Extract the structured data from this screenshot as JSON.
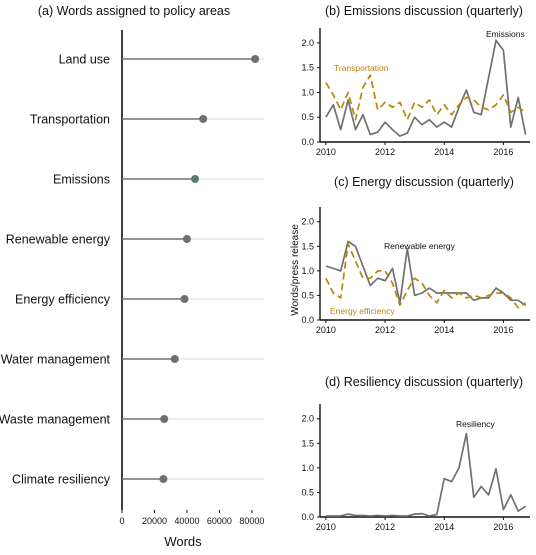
{
  "chart_data": [
    {
      "panel": "a",
      "type": "lollipop",
      "title": "(a) Words assigned to policy areas",
      "xlabel": "Words",
      "xlim": [
        0,
        85000
      ],
      "xticks": [
        "0",
        "20000",
        "40000",
        "60000",
        "80000"
      ],
      "xtick_values": [
        0,
        20000,
        40000,
        60000,
        80000
      ],
      "categories": [
        "Land use",
        "Transportation",
        "Emissions",
        "Renewable energy",
        "Energy efficiency",
        "Water management",
        "Waste management",
        "Climate resiliency"
      ],
      "values": [
        82000,
        50000,
        45000,
        40000,
        38500,
        32500,
        26000,
        25500
      ],
      "highlight": "Emissions",
      "colors": {
        "default": "#707070",
        "highlight": "#5b7a6e",
        "stem": "#707070",
        "guide": "#d9d9d9"
      }
    },
    {
      "panel": "b",
      "type": "line",
      "title": "(b) Emissions discussion (quarterly)",
      "xlim": [
        2009.8,
        2016.9
      ],
      "ylim": [
        0,
        2.3
      ],
      "xticks": [
        2010,
        2012,
        2014,
        2016
      ],
      "yticks": [
        "0.0",
        "0.5",
        "1.0",
        "1.5",
        "2.0"
      ],
      "ytick_values": [
        0,
        0.5,
        1.0,
        1.5,
        2.0
      ],
      "series": [
        {
          "name": "Emissions",
          "style": "solid",
          "color": "#707070",
          "x": [
            2010,
            2010.25,
            2010.5,
            2010.75,
            2011,
            2011.25,
            2011.5,
            2011.75,
            2012,
            2012.25,
            2012.5,
            2012.75,
            2013,
            2013.25,
            2013.5,
            2013.75,
            2014,
            2014.25,
            2014.5,
            2014.75,
            2015,
            2015.25,
            2015.5,
            2015.75,
            2016,
            2016.25,
            2016.5,
            2016.75
          ],
          "y": [
            0.5,
            0.75,
            0.25,
            0.85,
            0.25,
            0.55,
            0.15,
            0.2,
            0.4,
            0.25,
            0.12,
            0.18,
            0.5,
            0.35,
            0.45,
            0.3,
            0.4,
            0.3,
            0.7,
            1.05,
            0.6,
            0.55,
            1.3,
            2.05,
            1.85,
            0.3,
            0.9,
            0.15
          ]
        },
        {
          "name": "Transportation",
          "style": "dashed",
          "color": "#b8860b",
          "x": [
            2010,
            2010.25,
            2010.5,
            2010.75,
            2011,
            2011.25,
            2011.5,
            2011.75,
            2012,
            2012.25,
            2012.5,
            2012.75,
            2013,
            2013.25,
            2013.5,
            2013.75,
            2014,
            2014.25,
            2014.5,
            2014.75,
            2015,
            2015.25,
            2015.5,
            2015.75,
            2016,
            2016.25,
            2016.5,
            2016.75
          ],
          "y": [
            1.2,
            0.95,
            0.65,
            1.0,
            0.45,
            1.1,
            1.35,
            0.65,
            0.8,
            0.7,
            0.8,
            0.45,
            0.8,
            0.7,
            0.85,
            0.55,
            0.75,
            0.55,
            0.75,
            0.9,
            0.85,
            0.7,
            0.65,
            0.75,
            0.95,
            0.6,
            0.7,
            0.6
          ]
        }
      ],
      "labels": [
        {
          "text": "Emissions",
          "color": "#111111"
        },
        {
          "text": "Transportation",
          "color": "#b8860b"
        }
      ]
    },
    {
      "panel": "c",
      "type": "line",
      "title": "(c) Energy discussion (quarterly)",
      "ylabel": "Words/press release",
      "xlim": [
        2009.8,
        2016.9
      ],
      "ylim": [
        0,
        2.3
      ],
      "xticks": [
        2010,
        2012,
        2014,
        2016
      ],
      "yticks": [
        "0.0",
        "0.5",
        "1.0",
        "1.5",
        "2.0"
      ],
      "ytick_values": [
        0,
        0.5,
        1.0,
        1.5,
        2.0
      ],
      "series": [
        {
          "name": "Renewable energy",
          "style": "solid",
          "color": "#707070",
          "x": [
            2010,
            2010.25,
            2010.5,
            2010.75,
            2011,
            2011.25,
            2011.5,
            2011.75,
            2012,
            2012.25,
            2012.5,
            2012.75,
            2013,
            2013.25,
            2013.5,
            2013.75,
            2014,
            2014.25,
            2014.5,
            2014.75,
            2015,
            2015.25,
            2015.5,
            2015.75,
            2016,
            2016.25,
            2016.5,
            2016.75
          ],
          "y": [
            1.1,
            1.05,
            1.0,
            1.6,
            1.5,
            1.1,
            0.7,
            0.85,
            0.8,
            1.05,
            0.35,
            1.45,
            0.5,
            0.55,
            0.65,
            0.55,
            0.55,
            0.55,
            0.55,
            0.55,
            0.4,
            0.45,
            0.45,
            0.65,
            0.55,
            0.4,
            0.4,
            0.3
          ]
        },
        {
          "name": "Energy efficiency",
          "style": "dashed",
          "color": "#b8860b",
          "x": [
            2010,
            2010.25,
            2010.5,
            2010.75,
            2011,
            2011.25,
            2011.5,
            2011.75,
            2012,
            2012.25,
            2012.5,
            2012.75,
            2013,
            2013.25,
            2013.5,
            2013.75,
            2014,
            2014.25,
            2014.5,
            2014.75,
            2015,
            2015.25,
            2015.5,
            2015.75,
            2016,
            2016.25,
            2016.5,
            2016.75
          ],
          "y": [
            0.85,
            0.55,
            0.45,
            1.55,
            1.2,
            0.85,
            0.85,
            1.0,
            1.0,
            0.75,
            0.3,
            0.6,
            0.85,
            0.75,
            0.5,
            0.35,
            0.6,
            0.45,
            0.55,
            0.45,
            0.5,
            0.45,
            0.5,
            0.55,
            0.55,
            0.45,
            0.25,
            0.35
          ]
        }
      ],
      "labels": [
        {
          "text": "Renewable energy",
          "color": "#111111"
        },
        {
          "text": "Energy efficiency",
          "color": "#b8860b"
        }
      ]
    },
    {
      "panel": "d",
      "type": "line",
      "title": "(d) Resiliency discussion (quarterly)",
      "xlim": [
        2009.8,
        2016.9
      ],
      "ylim": [
        0,
        2.3
      ],
      "xticks": [
        2010,
        2012,
        2014,
        2016
      ],
      "yticks": [
        "0.0",
        "0.5",
        "1.0",
        "1.5",
        "2.0"
      ],
      "ytick_values": [
        0,
        0.5,
        1.0,
        1.5,
        2.0
      ],
      "series": [
        {
          "name": "Resiliency",
          "style": "solid",
          "color": "#707070",
          "x": [
            2010,
            2010.25,
            2010.5,
            2010.75,
            2011,
            2011.25,
            2011.5,
            2011.75,
            2012,
            2012.25,
            2012.5,
            2012.75,
            2013,
            2013.25,
            2013.5,
            2013.75,
            2014,
            2014.25,
            2014.5,
            2014.75,
            2015,
            2015.25,
            2015.5,
            2015.75,
            2016,
            2016.25,
            2016.5,
            2016.75
          ],
          "y": [
            0.02,
            0.02,
            0.02,
            0.06,
            0.03,
            0.03,
            0.02,
            0.03,
            0.02,
            0.03,
            0.02,
            0.02,
            0.06,
            0.07,
            0.02,
            0.05,
            0.78,
            0.72,
            1.0,
            1.7,
            0.4,
            0.62,
            0.45,
            0.98,
            0.15,
            0.45,
            0.12,
            0.22
          ]
        }
      ],
      "labels": [
        {
          "text": "Resiliency",
          "color": "#111111"
        }
      ]
    }
  ]
}
